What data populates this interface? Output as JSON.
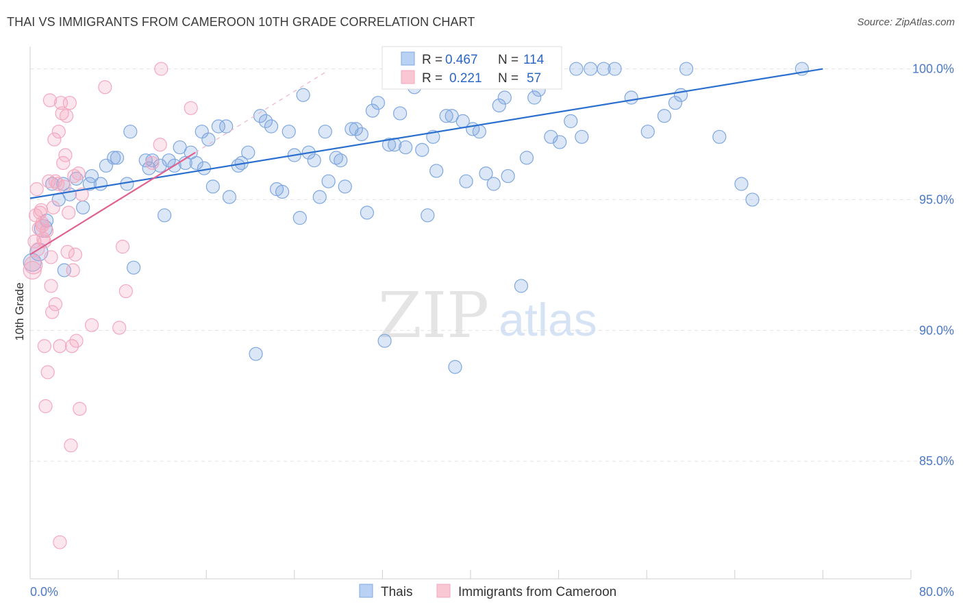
{
  "title": "THAI VS IMMIGRANTS FROM CAMEROON 10TH GRADE CORRELATION CHART",
  "source": "Source: ZipAtlas.com",
  "watermark": {
    "zip": "ZIP",
    "atlas": "atlas"
  },
  "chart_data": {
    "type": "scatter",
    "title": "THAI VS IMMIGRANTS FROM CAMEROON 10TH GRADE CORRELATION CHART",
    "ylabel": "10th Grade",
    "xlabel": "",
    "xlim": [
      0,
      80
    ],
    "ylim": [
      80.5,
      100.8
    ],
    "x_tick_labels": [
      "0.0%",
      "80.0%"
    ],
    "y_ticks": [
      100,
      95,
      90,
      85
    ],
    "y_tick_labels": [
      "100.0%",
      "95.0%",
      "90.0%",
      "85.0%"
    ],
    "grid": true,
    "legend_position": "top-center",
    "stats": [
      {
        "r_label": "R = ",
        "r": "0.467",
        "n_label": "N = ",
        "n": "114"
      },
      {
        "r_label": "R = ",
        "r": "0.221",
        "n_label": "N = ",
        "n": "57"
      }
    ],
    "series": [
      {
        "name": "Thais",
        "color": "#7ea7e0",
        "line_color": "#2a6fcf",
        "trend": {
          "x": [
            0,
            72
          ],
          "y": [
            95.05,
            100.0
          ]
        },
        "points": [
          [
            0.2,
            92.6
          ],
          [
            0.8,
            93.0
          ],
          [
            1.2,
            93.9
          ],
          [
            1.5,
            94.2
          ],
          [
            2.0,
            95.6
          ],
          [
            2.6,
            95.0
          ],
          [
            3.0,
            95.6
          ],
          [
            3.1,
            92.3
          ],
          [
            3.6,
            95.2
          ],
          [
            4.2,
            95.8
          ],
          [
            4.8,
            94.7
          ],
          [
            5.4,
            95.6
          ],
          [
            5.6,
            95.9
          ],
          [
            6.4,
            95.6
          ],
          [
            6.9,
            96.3
          ],
          [
            7.6,
            96.6
          ],
          [
            7.9,
            96.6
          ],
          [
            8.8,
            95.6
          ],
          [
            9.1,
            97.6
          ],
          [
            9.4,
            92.4
          ],
          [
            10.5,
            96.5
          ],
          [
            10.8,
            96.2
          ],
          [
            11.1,
            96.5
          ],
          [
            11.8,
            96.3
          ],
          [
            12.2,
            94.4
          ],
          [
            12.6,
            96.5
          ],
          [
            13.1,
            96.3
          ],
          [
            13.6,
            97.0
          ],
          [
            14.1,
            96.4
          ],
          [
            14.6,
            96.8
          ],
          [
            15.1,
            96.4
          ],
          [
            15.6,
            97.6
          ],
          [
            15.8,
            96.2
          ],
          [
            16.2,
            97.3
          ],
          [
            16.6,
            95.5
          ],
          [
            17.1,
            97.8
          ],
          [
            17.8,
            97.8
          ],
          [
            18.1,
            95.1
          ],
          [
            18.9,
            96.3
          ],
          [
            19.2,
            96.4
          ],
          [
            19.8,
            96.8
          ],
          [
            20.5,
            89.1
          ],
          [
            20.9,
            98.2
          ],
          [
            21.4,
            98.0
          ],
          [
            21.9,
            97.8
          ],
          [
            22.4,
            95.4
          ],
          [
            22.9,
            95.3
          ],
          [
            23.5,
            97.6
          ],
          [
            24.0,
            96.7
          ],
          [
            24.5,
            94.3
          ],
          [
            24.8,
            99.0
          ],
          [
            25.3,
            96.8
          ],
          [
            25.8,
            96.5
          ],
          [
            26.3,
            95.1
          ],
          [
            26.8,
            97.6
          ],
          [
            27.1,
            95.7
          ],
          [
            27.8,
            96.6
          ],
          [
            28.2,
            96.5
          ],
          [
            28.6,
            95.5
          ],
          [
            29.2,
            97.7
          ],
          [
            29.6,
            97.7
          ],
          [
            30.1,
            97.5
          ],
          [
            30.6,
            94.5
          ],
          [
            31.1,
            98.4
          ],
          [
            31.6,
            98.7
          ],
          [
            32.2,
            89.6
          ],
          [
            32.6,
            97.1
          ],
          [
            33.1,
            97.1
          ],
          [
            33.6,
            98.3
          ],
          [
            34.1,
            97.0
          ],
          [
            34.9,
            99.3
          ],
          [
            35.6,
            96.9
          ],
          [
            36.1,
            94.4
          ],
          [
            36.6,
            97.4
          ],
          [
            36.9,
            96.1
          ],
          [
            37.8,
            98.2
          ],
          [
            38.3,
            98.2
          ],
          [
            38.6,
            88.6
          ],
          [
            39.3,
            98.0
          ],
          [
            39.6,
            95.7
          ],
          [
            40.2,
            97.7
          ],
          [
            40.8,
            97.6
          ],
          [
            41.4,
            96.0
          ],
          [
            42.1,
            95.6
          ],
          [
            42.6,
            98.6
          ],
          [
            43.4,
            95.9
          ],
          [
            43.1,
            98.9
          ],
          [
            44.1,
            99.7
          ],
          [
            44.6,
            91.7
          ],
          [
            45.1,
            96.6
          ],
          [
            45.8,
            98.9
          ],
          [
            46.2,
            99.2
          ],
          [
            47.3,
            97.4
          ],
          [
            48.1,
            97.2
          ],
          [
            49.1,
            98.0
          ],
          [
            49.6,
            100.0
          ],
          [
            50.1,
            97.4
          ],
          [
            50.9,
            100.0
          ],
          [
            52.1,
            100.0
          ],
          [
            53.1,
            100.0
          ],
          [
            54.6,
            98.9
          ],
          [
            56.1,
            97.6
          ],
          [
            57.6,
            98.2
          ],
          [
            58.6,
            98.7
          ],
          [
            59.1,
            99.0
          ],
          [
            59.6,
            100.0
          ],
          [
            62.6,
            97.4
          ],
          [
            64.6,
            95.6
          ],
          [
            65.6,
            95.0
          ],
          [
            70.1,
            100.0
          ]
        ]
      },
      {
        "name": "Immigrants from Cameroon",
        "color": "#f4a7bd",
        "line_color": "#e0608f",
        "trend": {
          "x": [
            0,
            15
          ],
          "y": [
            92.9,
            96.8
          ]
        },
        "points": [
          [
            0.2,
            92.3
          ],
          [
            0.4,
            93.4
          ],
          [
            0.5,
            94.4
          ],
          [
            0.6,
            95.4
          ],
          [
            0.7,
            93.1
          ],
          [
            0.8,
            93.9
          ],
          [
            1.0,
            94.6
          ],
          [
            1.1,
            94.1
          ],
          [
            1.2,
            93.5
          ],
          [
            1.3,
            89.4
          ],
          [
            1.4,
            87.1
          ],
          [
            1.5,
            93.8
          ],
          [
            1.6,
            88.4
          ],
          [
            1.7,
            95.7
          ],
          [
            1.8,
            98.8
          ],
          [
            1.9,
            92.8
          ],
          [
            1.9,
            91.7
          ],
          [
            2.0,
            90.7
          ],
          [
            2.1,
            94.7
          ],
          [
            2.2,
            97.3
          ],
          [
            2.3,
            95.7
          ],
          [
            2.3,
            91.0
          ],
          [
            2.5,
            95.6
          ],
          [
            2.6,
            97.6
          ],
          [
            2.7,
            89.4
          ],
          [
            2.7,
            81.9
          ],
          [
            2.8,
            98.7
          ],
          [
            2.9,
            98.3
          ],
          [
            3.0,
            96.4
          ],
          [
            3.1,
            95.5
          ],
          [
            3.2,
            96.7
          ],
          [
            3.3,
            98.2
          ],
          [
            3.4,
            93.0
          ],
          [
            3.5,
            94.5
          ],
          [
            3.6,
            98.7
          ],
          [
            3.7,
            85.6
          ],
          [
            3.8,
            89.4
          ],
          [
            3.9,
            92.3
          ],
          [
            4.0,
            95.9
          ],
          [
            4.1,
            92.9
          ],
          [
            4.2,
            89.6
          ],
          [
            4.4,
            96.0
          ],
          [
            4.5,
            87.0
          ],
          [
            4.7,
            95.2
          ],
          [
            5.6,
            90.2
          ],
          [
            6.8,
            99.3
          ],
          [
            8.1,
            90.1
          ],
          [
            8.4,
            93.2
          ],
          [
            8.7,
            91.5
          ],
          [
            11.1,
            96.4
          ],
          [
            11.8,
            97.1
          ],
          [
            11.9,
            100.0
          ],
          [
            14.6,
            98.5
          ],
          [
            1.3,
            93.4
          ],
          [
            0.9,
            94.5
          ],
          [
            1.1,
            94.0
          ],
          [
            0.3,
            92.5
          ]
        ]
      }
    ]
  },
  "legend_bottom": [
    {
      "label": "Thais"
    },
    {
      "label": "Immigrants from Cameroon"
    }
  ]
}
